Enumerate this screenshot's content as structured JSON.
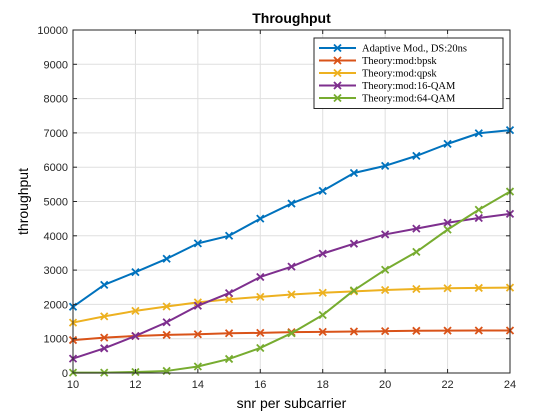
{
  "chart_data": {
    "type": "line",
    "title": "Throughput",
    "xlabel": "snr per subcarrier",
    "ylabel": "throughput",
    "xlim": [
      10,
      24
    ],
    "ylim": [
      0,
      10000
    ],
    "xticks": [
      10,
      12,
      14,
      16,
      18,
      20,
      22,
      24
    ],
    "yticks": [
      0,
      1000,
      2000,
      3000,
      4000,
      5000,
      6000,
      7000,
      8000,
      9000,
      10000
    ],
    "grid": true,
    "legend_position": "top-right",
    "marker": "x",
    "x": [
      10,
      11,
      12,
      13,
      14,
      15,
      16,
      17,
      18,
      19,
      20,
      21,
      22,
      23,
      24
    ],
    "series": [
      {
        "name": "Adaptive Mod., DS:20ns",
        "color": "#0072BD",
        "values": [
          1930,
          2570,
          2940,
          3330,
          3780,
          4000,
          4500,
          4940,
          5310,
          5830,
          6040,
          6330,
          6680,
          6990,
          7080
        ]
      },
      {
        "name": "Theory:mod:bpsk",
        "color": "#D95319",
        "values": [
          960,
          1030,
          1080,
          1110,
          1130,
          1160,
          1170,
          1190,
          1200,
          1210,
          1220,
          1230,
          1235,
          1240,
          1240
        ]
      },
      {
        "name": "Theory:mod:qpsk",
        "color": "#EDB120",
        "values": [
          1470,
          1650,
          1810,
          1940,
          2060,
          2150,
          2220,
          2290,
          2340,
          2380,
          2420,
          2450,
          2470,
          2480,
          2490
        ]
      },
      {
        "name": "Theory:mod:16-QAM",
        "color": "#7E2F8E",
        "values": [
          420,
          720,
          1080,
          1480,
          1960,
          2330,
          2800,
          3100,
          3480,
          3770,
          4040,
          4210,
          4380,
          4520,
          4640
        ]
      },
      {
        "name": "Theory:mod:64-QAM",
        "color": "#77AC30",
        "values": [
          10,
          10,
          30,
          60,
          190,
          410,
          730,
          1160,
          1690,
          2410,
          3010,
          3530,
          4180,
          4760,
          5290
        ]
      }
    ]
  }
}
